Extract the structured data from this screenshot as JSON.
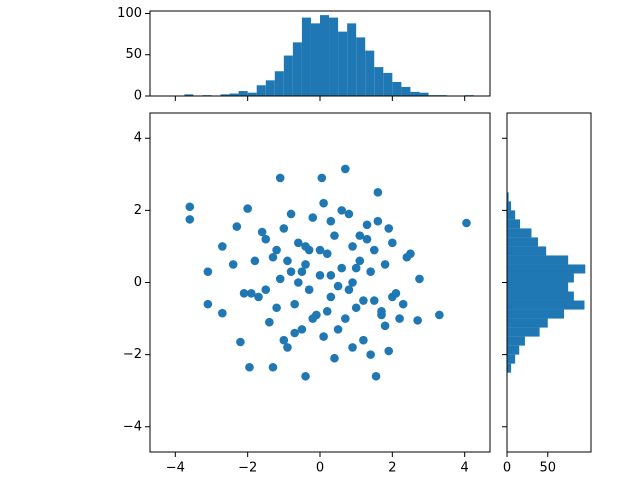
{
  "chart_data": [
    {
      "type": "scatter",
      "color": "#1f77b4",
      "x": [
        -3.6,
        -3.6,
        -3.1,
        -3.1,
        -2.7,
        -2.7,
        4.05,
        3.3,
        0.7,
        0.05,
        -1.1,
        -0.4,
        1.55,
        -1.95,
        -1.3,
        1.6,
        2.75,
        2.7,
        -2.3,
        -2.2,
        -2.0,
        -1.8,
        -1.7,
        -1.5,
        -1.4,
        -1.2,
        -1.0,
        -0.9,
        -0.8,
        -0.7,
        -0.6,
        -0.5,
        -0.4,
        -0.3,
        -0.2,
        -0.1,
        0.0,
        0.1,
        0.2,
        0.3,
        0.4,
        0.5,
        0.6,
        0.7,
        0.8,
        0.9,
        1.0,
        1.1,
        1.2,
        1.3,
        1.4,
        1.5,
        1.6,
        1.7,
        1.8,
        1.9,
        2.0,
        2.1,
        2.2,
        2.4,
        -1.6,
        -1.1,
        -0.7,
        -0.3,
        0.2,
        0.6,
        1.0,
        1.4,
        1.9,
        2.3,
        -1.9,
        -1.3,
        -0.8,
        -0.2,
        0.3,
        0.9,
        1.3,
        1.8,
        -0.6,
        0.1,
        0.8,
        1.5,
        -1.0,
        -0.4,
        0.4,
        1.1,
        -2.4,
        2.5,
        -0.9,
        0.5,
        1.7,
        -1.5,
        0.0,
        -0.5,
        1.2,
        2.0,
        -2.1,
        0.3,
        -1.2,
        0.9
      ],
      "y": [
        2.1,
        1.75,
        0.3,
        -0.6,
        1.0,
        -0.85,
        1.65,
        -0.9,
        3.15,
        2.9,
        2.9,
        -2.6,
        -2.6,
        -2.35,
        -2.35,
        2.5,
        0.1,
        -1.05,
        1.55,
        -1.65,
        2.05,
        0.6,
        -0.4,
        1.2,
        -1.1,
        0.9,
        1.5,
        -1.8,
        0.3,
        -0.6,
        1.1,
        -1.3,
        0.5,
        -0.2,
        1.8,
        -0.9,
        0.2,
        -1.5,
        0.8,
        -0.4,
        1.3,
        -0.1,
        0.4,
        -1.0,
        1.9,
        0.0,
        -0.7,
        0.6,
        -1.6,
        1.2,
        0.3,
        -0.5,
        1.7,
        -0.9,
        0.5,
        -1.9,
        1.1,
        -0.3,
        -1.0,
        0.7,
        1.4,
        0.1,
        -1.4,
        0.9,
        -0.8,
        2.0,
        0.4,
        -2.0,
        1.5,
        -0.6,
        -0.3,
        0.7,
        1.9,
        -1.0,
        0.2,
        -1.8,
        1.6,
        -1.2,
        0.0,
        2.2,
        -0.2,
        0.9,
        -1.6,
        1.0,
        -2.1,
        1.3,
        0.5,
        0.8,
        0.6,
        -1.3,
        -0.8,
        -0.2,
        0.9,
        0.3,
        -0.5,
        -0.4,
        -0.3,
        1.7,
        -0.7,
        1.0
      ],
      "xlim": [
        -4.7,
        4.7
      ],
      "ylim": [
        -4.7,
        4.7
      ],
      "xticks": [
        {
          "value": -4,
          "label": "−4"
        },
        {
          "value": -2,
          "label": "−2"
        },
        0,
        2,
        4
      ],
      "yticks": [
        {
          "value": -4,
          "label": "−4"
        },
        {
          "value": -2,
          "label": "−2"
        },
        0,
        2,
        4
      ]
    },
    {
      "type": "histogram",
      "orientation": "vertical",
      "color": "#1f77b4",
      "bins": [
        -4.25,
        -4.0,
        -3.75,
        -3.5,
        -3.25,
        -3.0,
        -2.75,
        -2.5,
        -2.25,
        -2.0,
        -1.75,
        -1.5,
        -1.25,
        -1.0,
        -0.75,
        -0.5,
        -0.25,
        0.0,
        0.25,
        0.5,
        0.75,
        1.0,
        1.25,
        1.5,
        1.75,
        2.0,
        2.25,
        2.5,
        2.75,
        3.0,
        3.25,
        3.5,
        3.75,
        4.0,
        4.25
      ],
      "counts": [
        0,
        0,
        2,
        0,
        1,
        0,
        2,
        3,
        6,
        4,
        13,
        19,
        30,
        49,
        65,
        95,
        88,
        98,
        95,
        78,
        88,
        71,
        55,
        35,
        28,
        17,
        11,
        5,
        4,
        1,
        1,
        0,
        0,
        1
      ],
      "ylim": [
        0,
        103
      ],
      "yticks": [
        0,
        50,
        100
      ]
    },
    {
      "type": "histogram",
      "orientation": "horizontal",
      "color": "#1f77b4",
      "bins": [
        -4.25,
        -4.0,
        -3.75,
        -3.5,
        -3.25,
        -3.0,
        -2.75,
        -2.5,
        -2.25,
        -2.0,
        -1.75,
        -1.5,
        -1.25,
        -1.0,
        -0.75,
        -0.5,
        -0.25,
        0.0,
        0.25,
        0.5,
        0.75,
        1.0,
        1.25,
        1.5,
        1.75,
        2.0,
        2.25,
        2.5,
        2.75,
        3.0,
        3.25,
        3.5,
        3.75,
        4.0,
        4.25
      ],
      "counts": [
        0,
        0,
        0,
        0,
        0,
        0,
        0,
        5,
        10,
        15,
        22,
        40,
        50,
        70,
        95,
        82,
        75,
        82,
        96,
        75,
        48,
        38,
        30,
        16,
        10,
        5,
        2,
        0,
        0,
        0,
        0,
        0,
        0,
        0
      ],
      "xlim": [
        0,
        103
      ],
      "xticks": [
        0,
        50
      ]
    }
  ]
}
